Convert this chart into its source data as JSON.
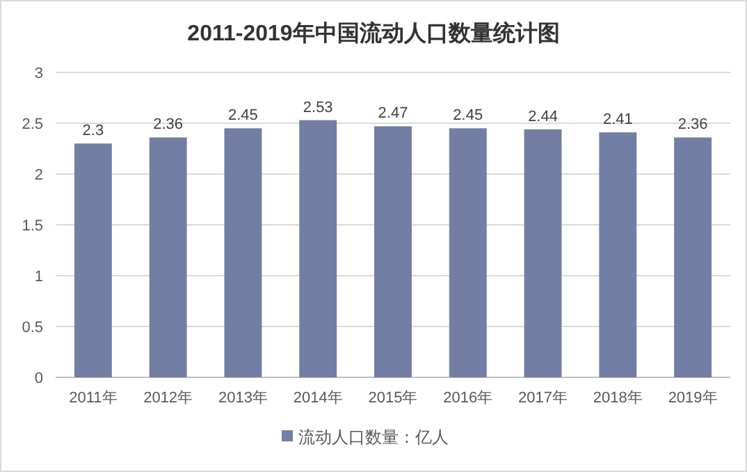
{
  "chart_data": {
    "type": "bar",
    "title": "2011-2019年中国流动人口数量统计图",
    "categories": [
      "2011年",
      "2012年",
      "2013年",
      "2014年",
      "2015年",
      "2016年",
      "2017年",
      "2018年",
      "2019年"
    ],
    "series": [
      {
        "name": "流动人口数量：亿人",
        "color": "#727ea3",
        "values": [
          2.3,
          2.36,
          2.45,
          2.53,
          2.47,
          2.45,
          2.44,
          2.41,
          2.36
        ]
      }
    ],
    "ylim": [
      0,
      3
    ],
    "yticks": [
      0,
      0.5,
      1,
      1.5,
      2,
      2.5,
      3
    ],
    "grid": "y",
    "legend": "bottom",
    "data_labels": true
  }
}
